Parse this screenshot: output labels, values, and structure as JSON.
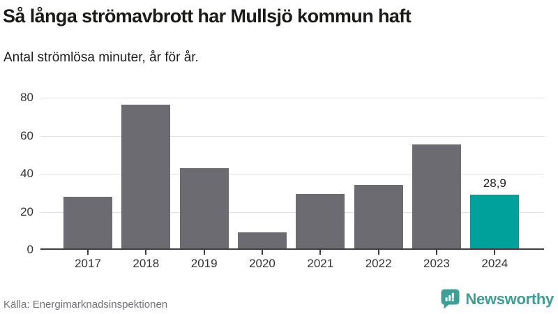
{
  "header": {
    "title": "Så långa strömavbrott har Mullsjö kommun haft",
    "subtitle": "Antal strömlösa minuter, år för år."
  },
  "chart_data": {
    "type": "bar",
    "categories": [
      "2017",
      "2018",
      "2019",
      "2020",
      "2021",
      "2022",
      "2023",
      "2024"
    ],
    "values": [
      28,
      76.5,
      43,
      9,
      29.5,
      34,
      55.5,
      28.9
    ],
    "title": "Så långa strömavbrott har Mullsjö kommun haft",
    "xlabel": "",
    "ylabel": "Antal strömlösa minuter",
    "ylim": [
      0,
      80
    ],
    "yticks": [
      0,
      20,
      40,
      60,
      80
    ],
    "grid": true,
    "legend": "none",
    "bar_color": "#6b6b71",
    "highlight": {
      "index": 7,
      "color": "#00a19a",
      "label": "28,9"
    }
  },
  "footer": {
    "source": "Källa: Energimarknadsinspektionen",
    "logo_text": "Newsworthy",
    "logo_color": "#3f9e96"
  }
}
